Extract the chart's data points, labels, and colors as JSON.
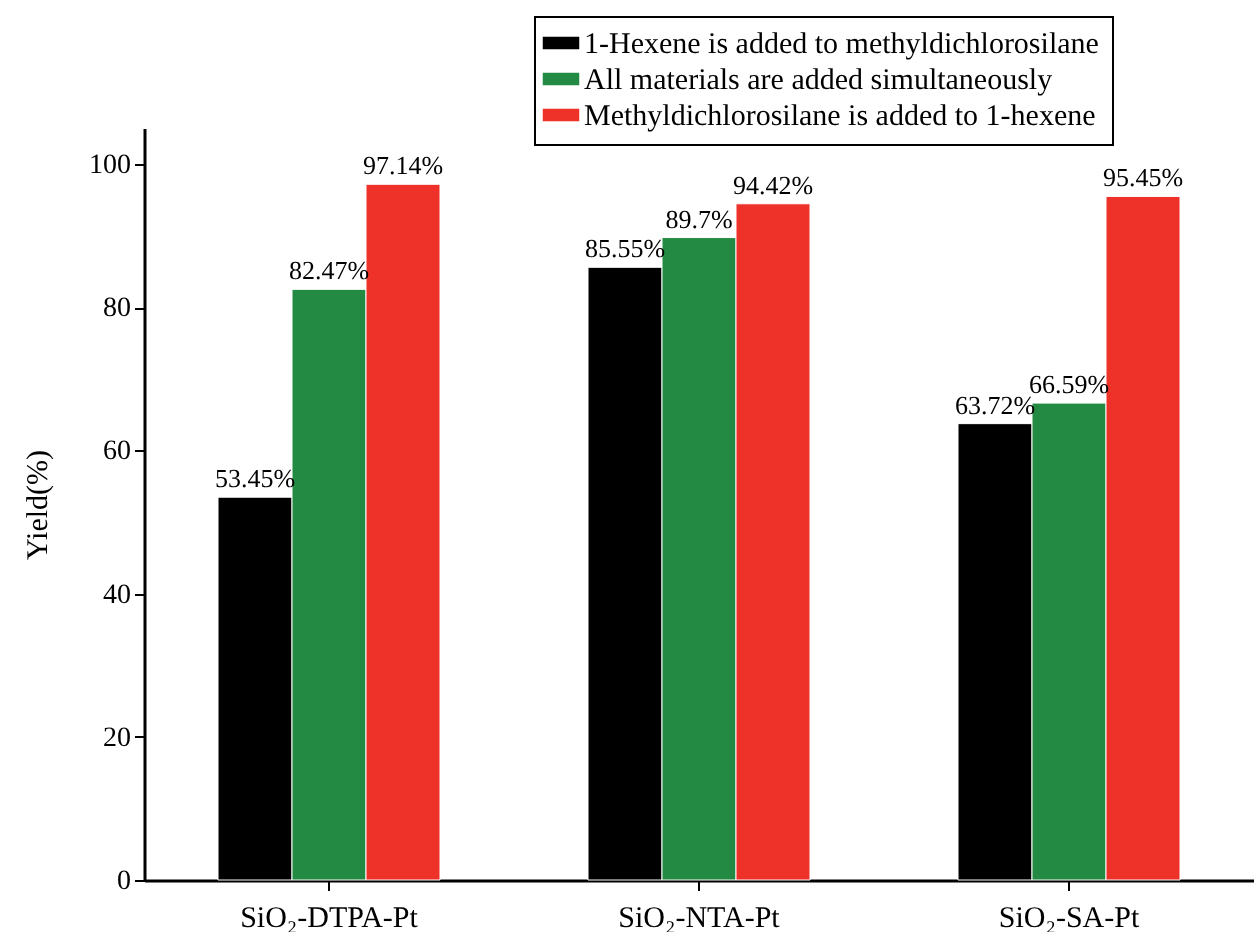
{
  "chart_data": {
    "type": "bar",
    "ylabel": "Yield(%)",
    "categories": [
      "SiO₂-DTPA-Pt",
      "SiO₂-NTA-Pt",
      "SiO₂-SA-Pt"
    ],
    "series": [
      {
        "name": "1-Hexene is added to methyldichlorosilane",
        "color": "#000000",
        "values": [
          53.45,
          85.55,
          63.72
        ],
        "value_labels": [
          "53.45%",
          "85.55%",
          "63.72%"
        ]
      },
      {
        "name": "All materials are added simultaneously",
        "color": "#238a43",
        "values": [
          82.47,
          89.7,
          66.59
        ],
        "value_labels": [
          "82.47%",
          "89.7%",
          "66.59%"
        ]
      },
      {
        "name": "Methyldichlorosilane is added to 1-hexene",
        "color": "#ee3229",
        "values": [
          97.14,
          94.42,
          95.45
        ],
        "value_labels": [
          "97.14%",
          "94.42%",
          "95.45%"
        ]
      }
    ],
    "ylim": [
      0,
      105
    ],
    "yticks": [
      0,
      20,
      40,
      60,
      80,
      100
    ],
    "legend": "top right",
    "grid": false
  }
}
